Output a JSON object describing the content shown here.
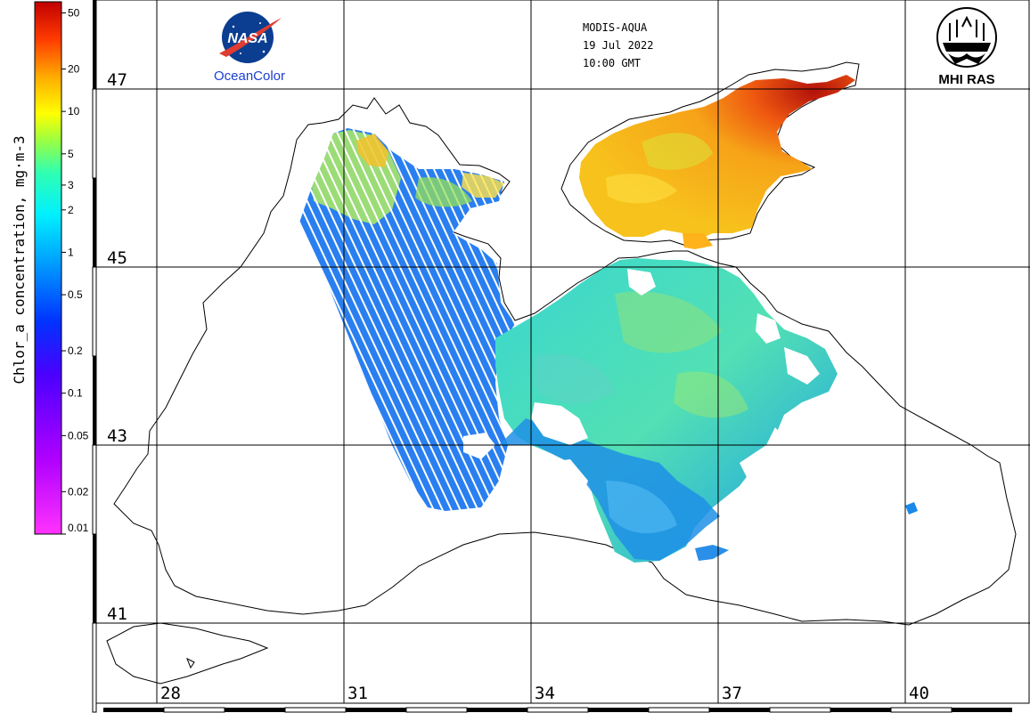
{
  "header": {
    "sensor": "MODIS-AQUA",
    "date": "19 Jul 2022",
    "time": "10:00 GMT"
  },
  "logos": {
    "nasa": "NASA",
    "oceancolor": "OceanColor",
    "mhi": "MHI RAS"
  },
  "colorbar": {
    "title": "Chlor_a concentration, mg·m-3",
    "ticks": [
      {
        "label": "50",
        "value": 50
      },
      {
        "label": "20",
        "value": 20
      },
      {
        "label": "10",
        "value": 10
      },
      {
        "label": "5",
        "value": 5
      },
      {
        "label": "3",
        "value": 3
      },
      {
        "label": "2",
        "value": 2
      },
      {
        "label": "1",
        "value": 1
      },
      {
        "label": "0.5",
        "value": 0.5
      },
      {
        "label": "0.2",
        "value": 0.2
      },
      {
        "label": "0.1",
        "value": 0.1
      },
      {
        "label": "0.05",
        "value": 0.05
      },
      {
        "label": "0.02",
        "value": 0.02
      },
      {
        "label": "0.01",
        "value": 0.01
      }
    ],
    "range": [
      0.01,
      60
    ],
    "scale": "log"
  },
  "grid": {
    "latitudes": [
      {
        "label": "47",
        "value": 47
      },
      {
        "label": "45",
        "value": 45
      },
      {
        "label": "43",
        "value": 43
      },
      {
        "label": "41",
        "value": 41
      }
    ],
    "longitudes": [
      {
        "label": "28",
        "value": 28
      },
      {
        "label": "31",
        "value": 31
      },
      {
        "label": "34",
        "value": 34
      },
      {
        "label": "37",
        "value": 37
      },
      {
        "label": "40",
        "value": 40
      }
    ]
  },
  "colors": {
    "azov_sea": "#f3b215",
    "azov_hot": "#b8150c",
    "shelf_green": "#b6e34c",
    "open_sea": "#3fd7c6",
    "deep_blue": "#1c7de0",
    "cloud_gap": "#ffffff",
    "coastline": "#000000"
  }
}
